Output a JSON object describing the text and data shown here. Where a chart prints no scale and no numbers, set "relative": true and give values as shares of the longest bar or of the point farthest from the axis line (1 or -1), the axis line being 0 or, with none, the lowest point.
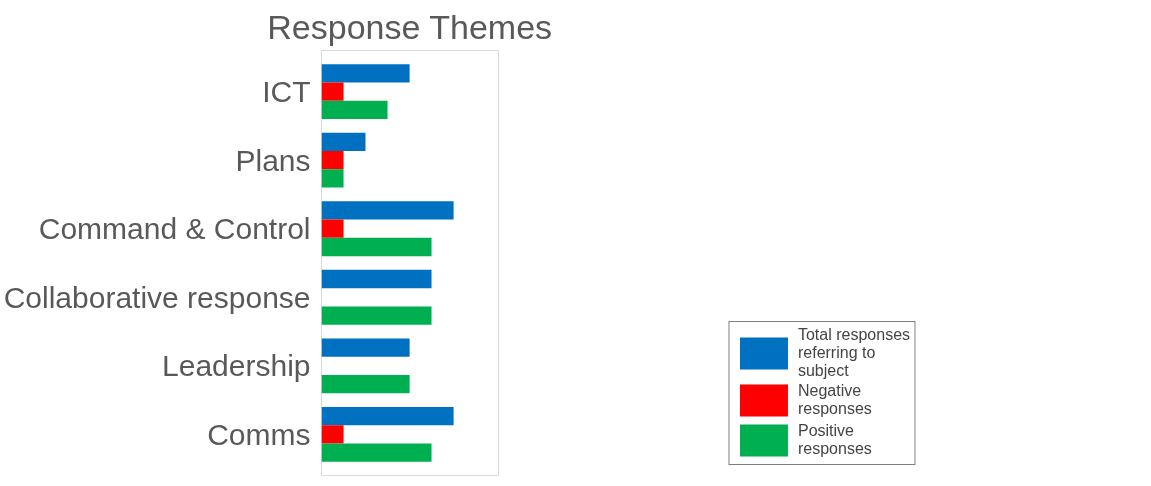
{
  "chart_data": {
    "type": "bar",
    "orientation": "horizontal",
    "relative": true,
    "title": "Response Themes",
    "categories": [
      "ICT",
      "Plans",
      "Command & Control",
      "Collaborative response",
      "Leadership",
      "Comms"
    ],
    "series": [
      {
        "name": "Total responses referring to subject",
        "color": "#0070c0",
        "values": [
          0.667,
          0.333,
          1,
          0.833,
          0.667,
          1
        ]
      },
      {
        "name": "Negative responses",
        "color": "#ff0000",
        "values": [
          0.167,
          0.167,
          0.167,
          0,
          0,
          0.167
        ]
      },
      {
        "name": "Positive responses",
        "color": "#00b050",
        "values": [
          0.5,
          0.167,
          0.833,
          0.833,
          0.667,
          0.833
        ]
      }
    ],
    "legend": "right"
  }
}
